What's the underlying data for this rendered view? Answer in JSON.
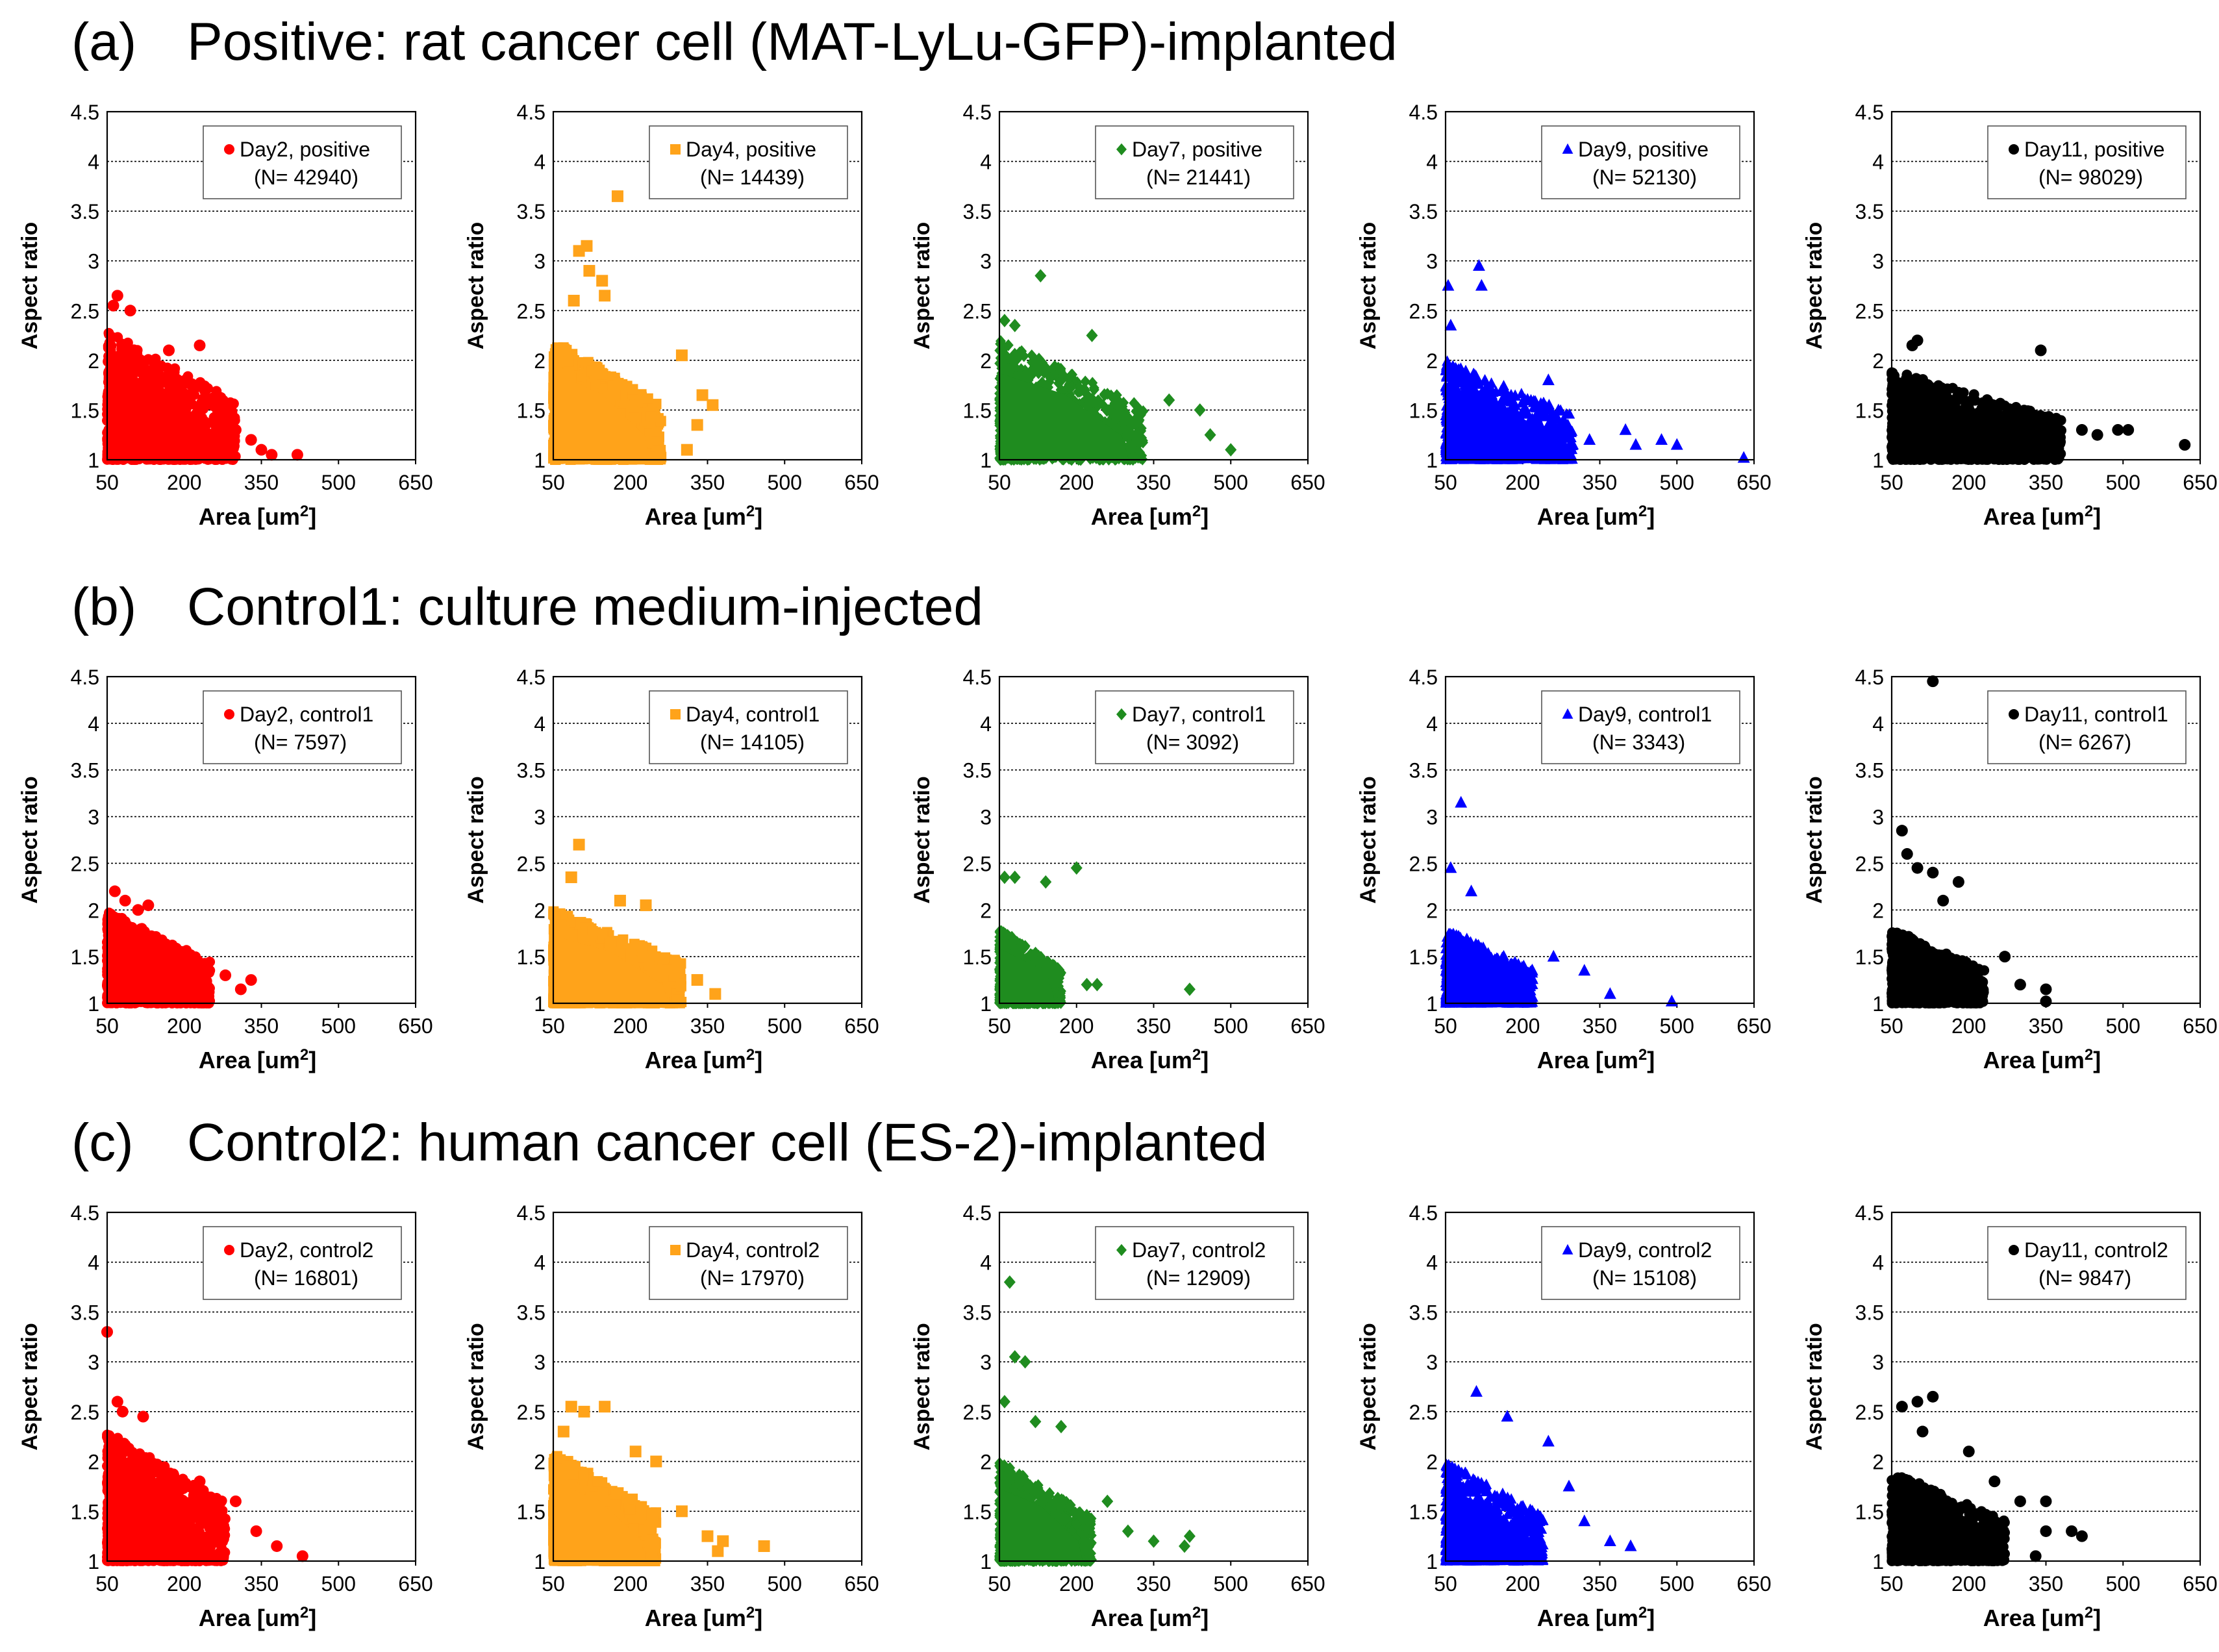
{
  "figure": {
    "xlabel": "Area [um",
    "xlabel_sup": "2",
    "xlabel_end": "]",
    "ylabel": "Aspect ratio",
    "x_ticks": [
      "50",
      "200",
      "350",
      "500",
      "650"
    ],
    "y_ticks": [
      "1",
      "1.5",
      "2",
      "2.5",
      "3",
      "3.5",
      "4",
      "4.5"
    ],
    "x_range": [
      50,
      650
    ],
    "y_range": [
      1,
      4.5
    ],
    "series_styles": [
      {
        "day": "Day2",
        "color": "#ff0000",
        "marker": "circle"
      },
      {
        "day": "Day4",
        "color": "#ffa31a",
        "marker": "square"
      },
      {
        "day": "Day7",
        "color": "#1f8c1f",
        "marker": "diamond"
      },
      {
        "day": "Day9",
        "color": "#0000ff",
        "marker": "triangle"
      },
      {
        "day": "Day11",
        "color": "#000000",
        "marker": "circle"
      }
    ]
  },
  "chart_data": [
    {
      "row": "a",
      "label": "(a)",
      "title": "Positive: rat cancer cell (MAT-LyLu-GFP)-implanted",
      "panels": [
        {
          "type": "scatter",
          "legend": "Day2, positive",
          "n_text": "(N= 42940)",
          "xmax_cloud": 300,
          "ymax_cloud": 2.3,
          "points": [
            [
              62,
              2.55
            ],
            [
              70,
              2.65
            ],
            [
              95,
              2.5
            ],
            [
              170,
              2.1
            ],
            [
              230,
              2.15
            ],
            [
              300,
              1.3
            ],
            [
              330,
              1.2
            ],
            [
              350,
              1.1
            ],
            [
              420,
              1.05
            ],
            [
              370,
              1.05
            ]
          ]
        },
        {
          "type": "scatter",
          "legend": "Day4, positive",
          "n_text": "(N= 14439)",
          "xmax_cloud": 260,
          "ymax_cloud": 2.2,
          "points": [
            [
              90,
              2.6
            ],
            [
              100,
              3.1
            ],
            [
              115,
              3.15
            ],
            [
              120,
              2.9
            ],
            [
              145,
              2.8
            ],
            [
              150,
              2.65
            ],
            [
              175,
              3.65
            ],
            [
              300,
              2.05
            ],
            [
              340,
              1.65
            ],
            [
              360,
              1.55
            ],
            [
              330,
              1.35
            ],
            [
              310,
              1.1
            ]
          ]
        },
        {
          "type": "scatter",
          "legend": "Day7, positive",
          "n_text": "(N= 21441)",
          "xmax_cloud": 330,
          "ymax_cloud": 2.2,
          "points": [
            [
              60,
              2.4
            ],
            [
              80,
              2.35
            ],
            [
              130,
              2.85
            ],
            [
              230,
              2.25
            ],
            [
              380,
              1.6
            ],
            [
              440,
              1.5
            ],
            [
              460,
              1.25
            ],
            [
              500,
              1.1
            ]
          ]
        },
        {
          "type": "scatter",
          "legend": "Day9, positive",
          "n_text": "(N= 52130)",
          "xmax_cloud": 300,
          "ymax_cloud": 2.0,
          "points": [
            [
              55,
              2.75
            ],
            [
              115,
              2.95
            ],
            [
              120,
              2.75
            ],
            [
              60,
              2.35
            ],
            [
              250,
              1.8
            ],
            [
              330,
              1.2
            ],
            [
              400,
              1.3
            ],
            [
              420,
              1.15
            ],
            [
              500,
              1.15
            ],
            [
              470,
              1.2
            ],
            [
              630,
              1.02
            ]
          ]
        },
        {
          "type": "scatter",
          "legend": "Day11, positive",
          "n_text": "(N= 98029)",
          "xmax_cloud": 380,
          "ymax_cloud": 1.9,
          "points": [
            [
              90,
              2.15
            ],
            [
              100,
              2.2
            ],
            [
              340,
              2.1
            ],
            [
              420,
              1.3
            ],
            [
              450,
              1.25
            ],
            [
              490,
              1.3
            ],
            [
              620,
              1.15
            ],
            [
              510,
              1.3
            ]
          ]
        }
      ]
    },
    {
      "row": "b",
      "label": "(b)",
      "title": "Control1: culture medium-injected",
      "panels": [
        {
          "type": "scatter",
          "legend": "Day2, control1",
          "n_text": "(N= 7597)",
          "xmax_cloud": 250,
          "ymax_cloud": 2.0,
          "points": [
            [
              65,
              2.2
            ],
            [
              85,
              2.1
            ],
            [
              110,
              2.0
            ],
            [
              130,
              2.05
            ],
            [
              330,
              1.25
            ],
            [
              310,
              1.15
            ],
            [
              280,
              1.3
            ]
          ]
        },
        {
          "type": "scatter",
          "legend": "Day4, control1",
          "n_text": "(N= 14105)",
          "xmax_cloud": 300,
          "ymax_cloud": 2.0,
          "points": [
            [
              100,
              2.7
            ],
            [
              85,
              2.35
            ],
            [
              180,
              2.1
            ],
            [
              230,
              2.05
            ],
            [
              330,
              1.25
            ],
            [
              365,
              1.1
            ]
          ]
        },
        {
          "type": "scatter",
          "legend": "Day7, control1",
          "n_text": "(N= 3092)",
          "xmax_cloud": 170,
          "ymax_cloud": 1.8,
          "points": [
            [
              60,
              2.35
            ],
            [
              80,
              2.35
            ],
            [
              140,
              2.3
            ],
            [
              200,
              2.45
            ],
            [
              240,
              1.2
            ],
            [
              220,
              1.2
            ],
            [
              420,
              1.15
            ]
          ]
        },
        {
          "type": "scatter",
          "legend": "Day9, control1",
          "n_text": "(N= 3343)",
          "xmax_cloud": 220,
          "ymax_cloud": 1.8,
          "points": [
            [
              60,
              2.45
            ],
            [
              80,
              3.15
            ],
            [
              100,
              2.2
            ],
            [
              260,
              1.5
            ],
            [
              320,
              1.35
            ],
            [
              370,
              1.1
            ],
            [
              490,
              1.02
            ]
          ]
        },
        {
          "type": "scatter",
          "legend": "Day11, control1",
          "n_text": "(N= 6267)",
          "xmax_cloud": 230,
          "ymax_cloud": 1.8,
          "points": [
            [
              130,
              4.45
            ],
            [
              70,
              2.85
            ],
            [
              80,
              2.6
            ],
            [
              100,
              2.45
            ],
            [
              130,
              2.4
            ],
            [
              150,
              2.1
            ],
            [
              180,
              2.3
            ],
            [
              270,
              1.5
            ],
            [
              300,
              1.2
            ],
            [
              350,
              1.15
            ],
            [
              350,
              1.02
            ]
          ]
        }
      ]
    },
    {
      "row": "c",
      "label": "(c)",
      "title": "Control2: human cancer cell (ES-2)-implanted",
      "panels": [
        {
          "type": "scatter",
          "legend": "Day2, control2",
          "n_text": "(N= 16801)",
          "xmax_cloud": 280,
          "ymax_cloud": 2.3,
          "points": [
            [
              50,
              3.3
            ],
            [
              70,
              2.6
            ],
            [
              80,
              2.5
            ],
            [
              120,
              2.45
            ],
            [
              230,
              1.8
            ],
            [
              300,
              1.6
            ],
            [
              340,
              1.3
            ],
            [
              380,
              1.15
            ],
            [
              430,
              1.05
            ]
          ]
        },
        {
          "type": "scatter",
          "legend": "Day4, control2",
          "n_text": "(N= 17970)",
          "xmax_cloud": 250,
          "ymax_cloud": 2.1,
          "points": [
            [
              70,
              2.3
            ],
            [
              85,
              2.55
            ],
            [
              110,
              2.5
            ],
            [
              150,
              2.55
            ],
            [
              210,
              2.1
            ],
            [
              250,
              2.0
            ],
            [
              300,
              1.5
            ],
            [
              350,
              1.25
            ],
            [
              380,
              1.2
            ],
            [
              460,
              1.15
            ],
            [
              370,
              1.1
            ]
          ]
        },
        {
          "type": "scatter",
          "legend": "Day7, control2",
          "n_text": "(N= 12909)",
          "xmax_cloud": 230,
          "ymax_cloud": 2.0,
          "points": [
            [
              70,
              3.8
            ],
            [
              80,
              3.05
            ],
            [
              100,
              3.0
            ],
            [
              60,
              2.6
            ],
            [
              120,
              2.4
            ],
            [
              170,
              2.35
            ],
            [
              260,
              1.6
            ],
            [
              300,
              1.3
            ],
            [
              350,
              1.2
            ],
            [
              420,
              1.25
            ],
            [
              410,
              1.15
            ]
          ]
        },
        {
          "type": "scatter",
          "legend": "Day9, control2",
          "n_text": "(N= 15108)",
          "xmax_cloud": 240,
          "ymax_cloud": 2.0,
          "points": [
            [
              110,
              2.7
            ],
            [
              170,
              2.45
            ],
            [
              250,
              2.2
            ],
            [
              290,
              1.75
            ],
            [
              320,
              1.4
            ],
            [
              370,
              1.2
            ],
            [
              410,
              1.15
            ]
          ]
        },
        {
          "type": "scatter",
          "legend": "Day11, control2",
          "n_text": "(N= 9847)",
          "xmax_cloud": 270,
          "ymax_cloud": 1.9,
          "points": [
            [
              70,
              2.55
            ],
            [
              100,
              2.6
            ],
            [
              130,
              2.65
            ],
            [
              110,
              2.3
            ],
            [
              200,
              2.1
            ],
            [
              250,
              1.8
            ],
            [
              300,
              1.6
            ],
            [
              350,
              1.6
            ],
            [
              400,
              1.3
            ],
            [
              420,
              1.25
            ],
            [
              350,
              1.3
            ],
            [
              330,
              1.05
            ]
          ]
        }
      ]
    }
  ]
}
